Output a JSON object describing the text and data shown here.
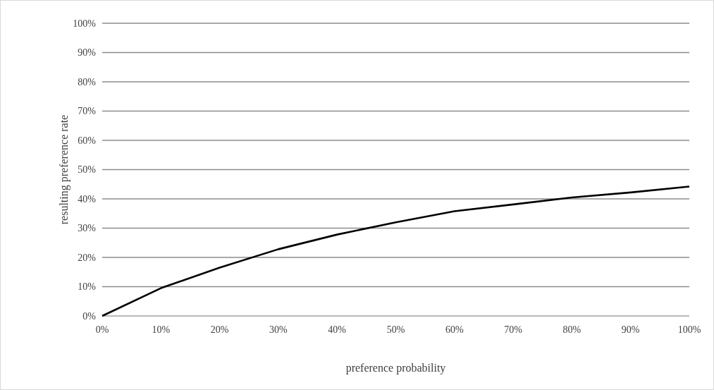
{
  "chart_data": {
    "type": "line",
    "xlabel": "preference probability",
    "ylabel": "resulting preference rate",
    "x": [
      0,
      10,
      20,
      30,
      40,
      50,
      60,
      70,
      80,
      90,
      100
    ],
    "series": [
      {
        "color": "#000000",
        "values": [
          0,
          9.5,
          16.5,
          22.8,
          27.8,
          32,
          35.8,
          38.1,
          40.5,
          42.2,
          44.2
        ]
      }
    ],
    "xlim": [
      0,
      100
    ],
    "xticks": [
      {
        "value": 0,
        "label": "0%"
      },
      {
        "value": 10,
        "label": "10%"
      },
      {
        "value": 20,
        "label": "20%"
      },
      {
        "value": 30,
        "label": "30%"
      },
      {
        "value": 40,
        "label": "40%"
      },
      {
        "value": 50,
        "label": "50%"
      },
      {
        "value": 60,
        "label": "60%"
      },
      {
        "value": 70,
        "label": "70%"
      },
      {
        "value": 80,
        "label": "80%"
      },
      {
        "value": 90,
        "label": "90%"
      },
      {
        "value": 100,
        "label": "100%"
      }
    ],
    "ylim": [
      0,
      100
    ],
    "yticks": [
      {
        "value": 0,
        "label": "0%"
      },
      {
        "value": 10,
        "label": "10%"
      },
      {
        "value": 20,
        "label": "20%"
      },
      {
        "value": 30,
        "label": "30%"
      },
      {
        "value": 40,
        "label": "40%"
      },
      {
        "value": 50,
        "label": "50%"
      },
      {
        "value": 60,
        "label": "60%"
      },
      {
        "value": 70,
        "label": "70%"
      },
      {
        "value": 80,
        "label": "80%"
      },
      {
        "value": 90,
        "label": "90%"
      },
      {
        "value": 100,
        "label": "100%"
      }
    ],
    "grid": "y",
    "marker": "none",
    "line_style": "solid"
  }
}
